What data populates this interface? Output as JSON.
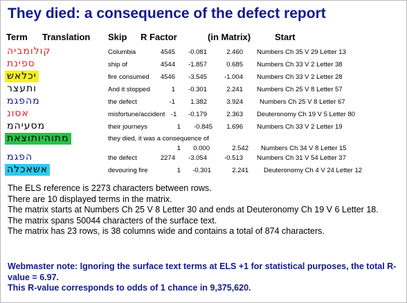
{
  "title": "They died: a consequence of the defect report",
  "headers": {
    "term": "Term",
    "translation": "Translation",
    "skip": "Skip",
    "r_factor": "R Factor",
    "in_matrix": "(in Matrix)",
    "start": "Start"
  },
  "rows": [
    {
      "term": "קולומביה",
      "term_color": "#e8202a",
      "term_bg": "",
      "translation": "Columbia",
      "skip": "4545",
      "r_factor": "-0.081",
      "in_matrix": "2.460",
      "start": "Numbers Ch 35 V 29 Letter 13"
    },
    {
      "term": "ספינת",
      "term_color": "#e8202a",
      "term_bg": "",
      "translation": "ship of",
      "skip": "4544",
      "r_factor": "-1.857",
      "in_matrix": "0.685",
      "start": "Numbers Ch 33 V 2 Letter 38"
    },
    {
      "term": "יכלאש",
      "term_color": "#000000",
      "term_bg": "#f5f01d",
      "translation": "fire consumed",
      "skip": "4546",
      "r_factor": "-3.545",
      "in_matrix": "-1.004",
      "start": "Numbers Ch 33 V 2 Letter 28"
    },
    {
      "term": "ותעצר",
      "term_color": "#000000",
      "term_bg": "",
      "translation": "And it stopped",
      "skip": "1",
      "r_factor": "-0.301",
      "in_matrix": "2.241",
      "start": "Numbers Ch 25 V 8 Letter 57"
    },
    {
      "term": "מהפגמ",
      "term_color": "#111a8c",
      "term_bg": "",
      "translation": "the defect",
      "skip": "-1",
      "r_factor": "1.382",
      "in_matrix": "3.924",
      "start": "Numbers Ch 25 V 8 Letter 67"
    },
    {
      "term": "אסונ",
      "term_color": "#e8202a",
      "term_bg": "",
      "translation": "misfortune/accident",
      "skip": "-1",
      "r_factor": "-0.179",
      "in_matrix": "2.363",
      "start": "Deuteronomy Ch 19 V 5 Letter 80"
    },
    {
      "term": "מסעיהמ",
      "term_color": "#000000",
      "term_bg": "",
      "translation": "their journeys",
      "skip": "1",
      "r_factor": "-0.845",
      "in_matrix": "1.696",
      "start": "Numbers Ch 33 V 2 Letter 19"
    },
    {
      "term": "מתוהיותוצאת",
      "term_color": "#000000",
      "term_bg": "#27c24a",
      "translation": "they died, it was a consequence of",
      "skip": "1",
      "r_factor": "0.000",
      "in_matrix": "2.542",
      "start": "Numbers Ch 34 V 8 Letter 15"
    },
    {
      "term": "הפגמ",
      "term_color": "#111a8c",
      "term_bg": "",
      "translation": "the defect",
      "skip": "2274",
      "r_factor": "-3.054",
      "in_matrix": "-0.513",
      "start": "Numbers Ch 31 V 54 Letter 37"
    },
    {
      "term": "אשאכלה",
      "term_color": "#000000",
      "term_bg": "#32c8ee",
      "translation": "devouring fire",
      "skip": "1",
      "r_factor": "-0.301",
      "in_matrix": "2.241",
      "start": "Deuteronomy Ch 4 V 24 Letter 12"
    }
  ],
  "summary": [
    "The ELS reference is 2273 characters between rows.",
    "There are 10 displayed terms in the matrix.",
    "The matrix starts at Numbers Ch 25 V 8 Letter 30 and ends at Deuteronomy Ch 19 V 6 Letter 18.",
    "The matrix spans 50044 characters of the surface text.",
    "The matrix has 23 rows, is 38 columns wide and contains a total of 874 characters."
  ],
  "note": [
    "Webmaster note:  Ignoring the surface text terms at ELS +1 for statistical purposes, the total R-value = 6.97.",
    "This R-value corresponds to odds of 1 chance in 9,375,620."
  ]
}
